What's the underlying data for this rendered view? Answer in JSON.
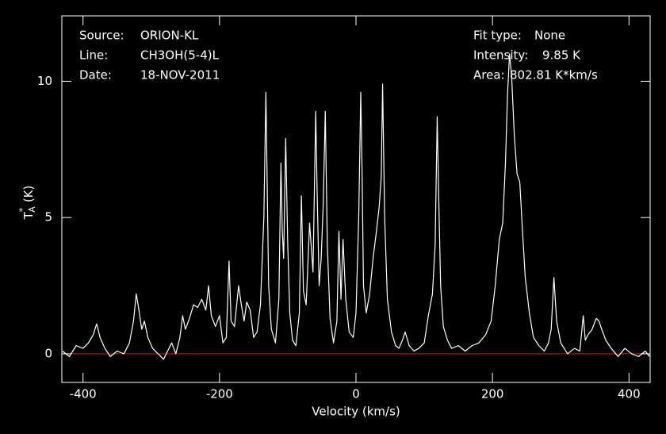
{
  "chart_data": {
    "type": "line",
    "x_label": "Velocity (km/s)",
    "y_label": {
      "main": "T",
      "sub": "A",
      "sup": "*",
      "unit": "(K)"
    },
    "annotations_left": [
      {
        "label": "Source:",
        "value": "ORION-KL"
      },
      {
        "label": "Line:",
        "value": "CH3OH(5-4)L"
      },
      {
        "label": "Date:",
        "value": "18-NOV-2011"
      }
    ],
    "annotations_right": [
      {
        "label": "Fit type:",
        "value": "None"
      },
      {
        "label": "Intensity:",
        "value": "9.85 K"
      },
      {
        "label": "Area:",
        "value": "802.81 K*km/s"
      }
    ],
    "xlim": [
      -431,
      431
    ],
    "ylim": [
      -1.05,
      12.4
    ],
    "xticks": [
      -400,
      -200,
      0,
      200,
      400
    ],
    "yticks": [
      0,
      5,
      10
    ],
    "color": "#ffffff",
    "baseline": 0,
    "baseline_color": "#ff0000",
    "x": [
      -430,
      -420,
      -410,
      -400,
      -392,
      -385,
      -380,
      -375,
      -368,
      -360,
      -350,
      -340,
      -332,
      -326,
      -322,
      -318,
      -314,
      -310,
      -305,
      -298,
      -290,
      -282,
      -276,
      -270,
      -264,
      -258,
      -254,
      -250,
      -244,
      -238,
      -232,
      -226,
      -220,
      -216,
      -212,
      -206,
      -200,
      -195,
      -190,
      -186,
      -183,
      -178,
      -172,
      -168,
      -164,
      -160,
      -155,
      -150,
      -145,
      -140,
      -135,
      -132,
      -130,
      -128,
      -124,
      -118,
      -113,
      -110,
      -108,
      -106,
      -103,
      -100,
      -97,
      -93,
      -88,
      -83,
      -80,
      -77,
      -73,
      -68,
      -63,
      -59,
      -57,
      -54,
      -51,
      -48,
      -45,
      -42,
      -38,
      -33,
      -28,
      -25,
      -22,
      -19,
      -15,
      -10,
      -4,
      0,
      4,
      7,
      9,
      11,
      15,
      20,
      25,
      30,
      34,
      37,
      39,
      42,
      46,
      52,
      58,
      63,
      68,
      72,
      78,
      85,
      92,
      100,
      106,
      112,
      116,
      119,
      121,
      124,
      128,
      134,
      140,
      150,
      160,
      170,
      180,
      190,
      198,
      204,
      210,
      215,
      219,
      222,
      225,
      228,
      232,
      236,
      240,
      244,
      248,
      254,
      260,
      268,
      276,
      282,
      286,
      290,
      294,
      300,
      310,
      320,
      328,
      333,
      336,
      340,
      346,
      352,
      356,
      360,
      366,
      374,
      384,
      394,
      404,
      414,
      424,
      430
    ],
    "values": [
      0.1,
      -0.1,
      0.3,
      0.2,
      0.4,
      0.7,
      1.1,
      0.6,
      0.2,
      -0.1,
      0.1,
      0.0,
      0.4,
      1.2,
      2.2,
      1.6,
      0.9,
      1.2,
      0.6,
      0.2,
      0.0,
      -0.2,
      0.1,
      0.4,
      0.0,
      0.6,
      1.4,
      0.9,
      1.3,
      1.8,
      1.7,
      2.0,
      1.6,
      2.5,
      1.4,
      1.0,
      1.4,
      0.4,
      0.6,
      3.4,
      1.2,
      1.0,
      2.5,
      1.8,
      1.2,
      1.9,
      1.6,
      0.6,
      0.8,
      1.8,
      5.0,
      9.6,
      6.0,
      2.5,
      0.9,
      0.4,
      2.0,
      7.0,
      4.5,
      3.5,
      7.9,
      4.0,
      1.5,
      0.5,
      0.3,
      1.5,
      5.8,
      2.3,
      1.8,
      4.8,
      3.0,
      8.9,
      6.0,
      2.5,
      3.5,
      5.5,
      8.9,
      4.0,
      1.3,
      0.4,
      1.2,
      4.5,
      2.0,
      4.2,
      2.0,
      0.8,
      0.6,
      1.5,
      5.0,
      9.6,
      6.5,
      2.5,
      1.5,
      2.2,
      3.5,
      4.5,
      5.4,
      6.5,
      9.9,
      5.0,
      2.0,
      0.8,
      0.3,
      0.2,
      0.5,
      0.8,
      0.3,
      0.1,
      0.2,
      0.4,
      1.4,
      2.2,
      4.0,
      8.7,
      6.0,
      2.5,
      1.0,
      0.5,
      0.2,
      0.3,
      0.1,
      0.3,
      0.4,
      0.7,
      1.2,
      2.5,
      4.2,
      4.8,
      7.0,
      9.5,
      11.0,
      10.2,
      8.0,
      6.6,
      6.3,
      4.5,
      2.8,
      1.5,
      0.6,
      0.3,
      0.1,
      0.4,
      0.9,
      2.8,
      1.2,
      0.4,
      0.0,
      0.2,
      0.1,
      1.4,
      0.5,
      0.7,
      0.9,
      1.3,
      1.2,
      0.9,
      0.5,
      0.2,
      -0.1,
      0.2,
      0.0,
      -0.1,
      0.1,
      -0.1
    ]
  }
}
